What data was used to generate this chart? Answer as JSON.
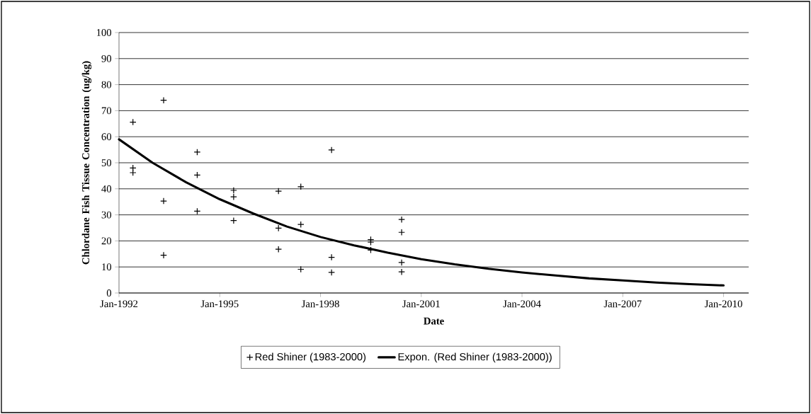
{
  "chart_data": {
    "type": "scatter",
    "xlabel": "Date",
    "ylabel": "Chlordane Fish Tissue Concentration (ug/kg)",
    "xlim": [
      "1992-01",
      "2010-10"
    ],
    "ylim": [
      0,
      100
    ],
    "xticks": [
      {
        "value": "1992-01",
        "label": "Jan-1992"
      },
      {
        "value": "1995-01",
        "label": "Jan-1995"
      },
      {
        "value": "1998-01",
        "label": "Jan-1998"
      },
      {
        "value": "2001-01",
        "label": "Jan-2001"
      },
      {
        "value": "2004-01",
        "label": "Jan-2004"
      },
      {
        "value": "2007-01",
        "label": "Jan-2007"
      },
      {
        "value": "2010-01",
        "label": "Jan-2010"
      }
    ],
    "yticks": [
      0,
      10,
      20,
      30,
      40,
      50,
      60,
      70,
      80,
      90,
      100
    ],
    "grid": "y",
    "legend": "bottom",
    "series": [
      {
        "name": "Red Shiner (1983-2000)",
        "color": "#000000",
        "marker": "cross",
        "x": [
          "1992-06",
          "1992-06",
          "1992-06",
          "1993-05",
          "1993-05",
          "1993-05",
          "1994-05",
          "1994-05",
          "1994-05",
          "1995-06",
          "1995-06",
          "1995-06",
          "1996-10",
          "1996-10",
          "1996-10",
          "1997-06",
          "1997-06",
          "1997-06",
          "1998-05",
          "1998-05",
          "1998-05",
          "1999-07",
          "1999-07",
          "1999-07",
          "2000-06",
          "2000-06",
          "2000-06",
          "2000-06"
        ],
        "values": [
          65.6,
          48.0,
          46.2,
          74.0,
          35.3,
          14.5,
          54.1,
          45.3,
          31.4,
          39.4,
          36.9,
          27.8,
          39.1,
          24.9,
          16.8,
          40.8,
          26.3,
          9.1,
          54.9,
          13.7,
          7.9,
          20.5,
          19.5,
          16.5,
          28.2,
          23.3,
          11.7,
          8.1
        ]
      },
      {
        "name": "Expon. (Red Shiner (1983-2000))",
        "type": "line",
        "color": "#000000",
        "marker": "none",
        "line_style": "solid",
        "x": [
          "1992-01",
          "1993-01",
          "1994-01",
          "1995-01",
          "1996-01",
          "1997-01",
          "1998-01",
          "1999-01",
          "2000-01",
          "2001-01",
          "2002-01",
          "2003-01",
          "2004-01",
          "2005-01",
          "2006-01",
          "2007-01",
          "2008-01",
          "2009-01",
          "2010-01"
        ],
        "values": [
          59,
          50,
          42.5,
          36,
          30.5,
          25.5,
          21.5,
          18.3,
          15.5,
          13,
          11,
          9.3,
          7.9,
          6.7,
          5.6,
          4.8,
          4,
          3.4,
          2.9
        ]
      }
    ]
  }
}
